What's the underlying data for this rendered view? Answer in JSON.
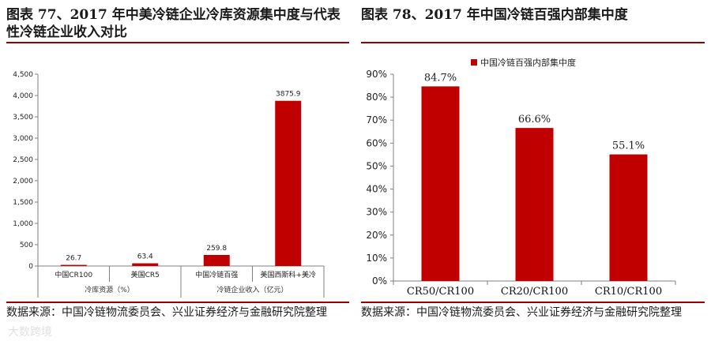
{
  "left_panel": {
    "title": "图表 77、2017 年中美冷链企业冷库资源集中度与代表性冷链企业收入对比",
    "source": "数据来源：中国冷链物流委员会、兴业证券经济与金融研究院整理"
  },
  "right_panel": {
    "title": "图表 78、2017 年中国冷链百强内部集中度",
    "source": "数据来源：中国冷链物流委员会、兴业证券经济与金融研究院整理"
  },
  "watermark": "大数跨境",
  "colors": {
    "bar": "#c00000",
    "rule": "#9a0000",
    "axis": "#808080"
  },
  "chart_data": [
    {
      "type": "bar",
      "categories": [
        "中国CR100",
        "美国CR5",
        "中国冷链百强",
        "美国西斯科+美冷"
      ],
      "values": [
        26.7,
        63.4,
        259.8,
        3875.9
      ],
      "data_labels": [
        "26.7",
        "63.4",
        "259.8",
        "3875.9"
      ],
      "groups": [
        {
          "label": "冷库资源（%）",
          "categories": [
            "中国CR100",
            "美国CR5"
          ]
        },
        {
          "label": "冷链企业收入（亿元）",
          "categories": [
            "中国冷链百强",
            "美国西斯科+美冷"
          ]
        }
      ],
      "ylim": [
        0,
        4500
      ],
      "yticks": [
        "0",
        "500",
        "1,000",
        "1,500",
        "2,000",
        "2,500",
        "3,000",
        "3,500",
        "4,000",
        "4,500"
      ],
      "title": "",
      "xlabel": "",
      "ylabel": "",
      "grid": false
    },
    {
      "type": "bar",
      "categories": [
        "CR50/CR100",
        "CR20/CR100",
        "CR10/CR100"
      ],
      "series": [
        {
          "name": "中国冷链百强内部集中度",
          "values": [
            84.7,
            66.6,
            55.1
          ]
        }
      ],
      "data_labels": [
        "84.7%",
        "66.6%",
        "55.1%"
      ],
      "ylim": [
        0,
        90
      ],
      "yticks": [
        "0%",
        "10%",
        "20%",
        "30%",
        "40%",
        "50%",
        "60%",
        "70%",
        "80%",
        "90%"
      ],
      "legend": "top-left",
      "title": "",
      "xlabel": "",
      "ylabel": "",
      "grid": false
    }
  ]
}
